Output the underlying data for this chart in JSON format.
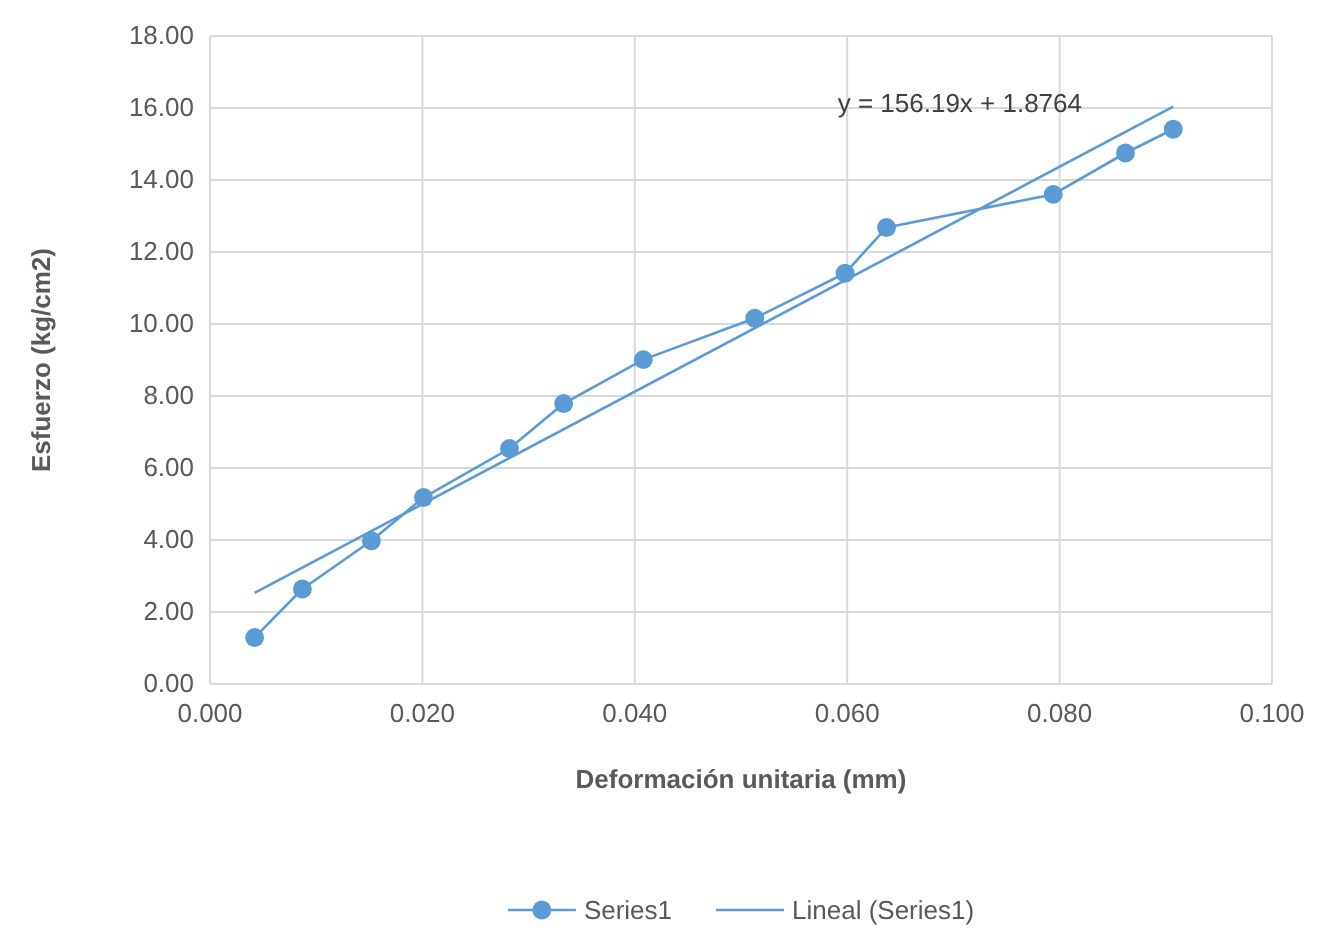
{
  "chart_data": {
    "type": "line",
    "xlabel": "Deformación unitaria (mm)",
    "ylabel": "Esfuerzo (kg/cm2)",
    "xlim": [
      0,
      0.1
    ],
    "xticks": [
      {
        "value": 0,
        "label": "0.000"
      },
      {
        "value": 0.02,
        "label": "0.020"
      },
      {
        "value": 0.04,
        "label": "0.040"
      },
      {
        "value": 0.06,
        "label": "0.060"
      },
      {
        "value": 0.08,
        "label": "0.080"
      },
      {
        "value": 0.1,
        "label": "0.100"
      }
    ],
    "ylim": [
      0,
      18
    ],
    "yticks": [
      {
        "value": 0,
        "label": "0.00"
      },
      {
        "value": 2,
        "label": "2.00"
      },
      {
        "value": 4,
        "label": "4.00"
      },
      {
        "value": 6,
        "label": "6.00"
      },
      {
        "value": 8,
        "label": "8.00"
      },
      {
        "value": 10,
        "label": "10.00"
      },
      {
        "value": 12,
        "label": "12.00"
      },
      {
        "value": 14,
        "label": "14.00"
      },
      {
        "value": 16,
        "label": "16.00"
      },
      {
        "value": 18,
        "label": "18.00"
      }
    ],
    "grid": true,
    "legend": "bottom",
    "annotations": [
      "y = 156.19x + 1.8764"
    ],
    "series": [
      {
        "name": "Series1",
        "color": "#5b9bd5",
        "marker": "circle",
        "x": [
          0.0042,
          0.0087,
          0.0152,
          0.0201,
          0.0282,
          0.0333,
          0.0408,
          0.0513,
          0.0598,
          0.0637,
          0.0794,
          0.0862,
          0.0907
        ],
        "values": [
          1.29,
          2.64,
          3.98,
          5.18,
          6.54,
          7.79,
          9.01,
          10.16,
          11.41,
          12.68,
          13.6,
          14.75,
          15.41
        ]
      },
      {
        "name": "Lineal (Series1)",
        "color": "#5b9bd5",
        "marker": "none",
        "x": [
          0.0042,
          0.0907
        ],
        "values": [
          2.53,
          16.04
        ]
      }
    ]
  }
}
